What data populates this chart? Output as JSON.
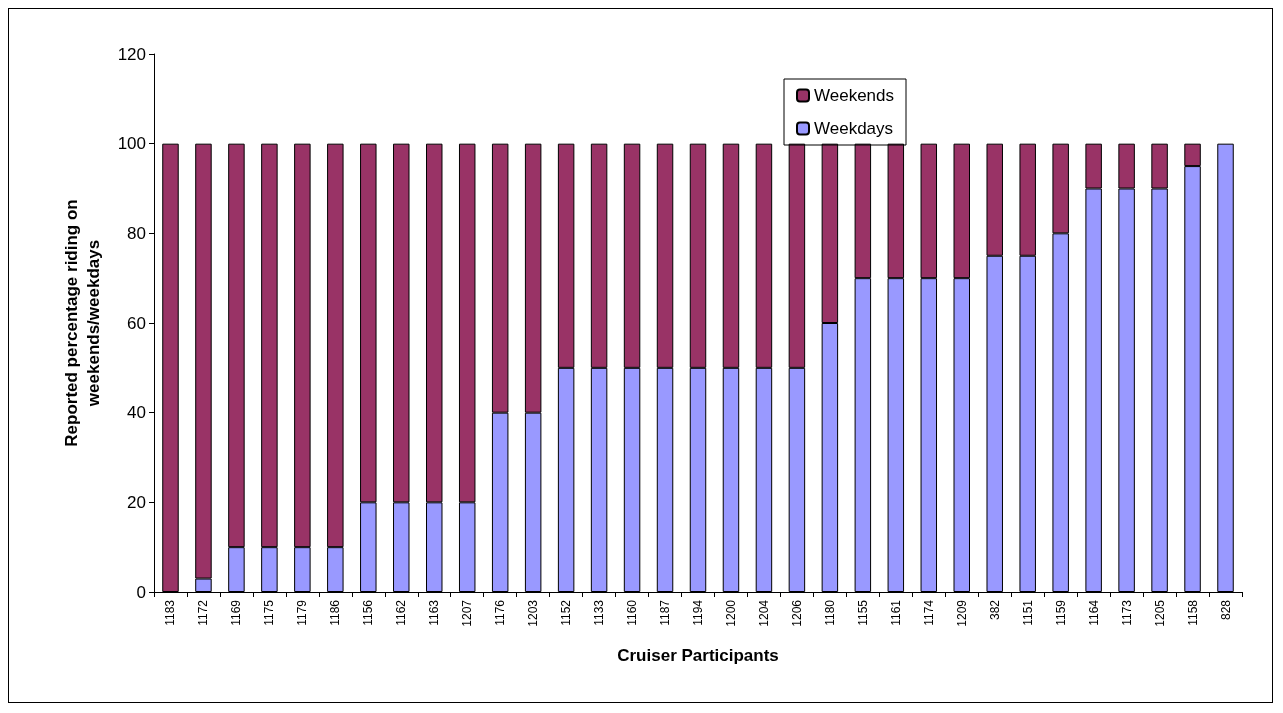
{
  "chart_data": {
    "type": "bar",
    "stacked": true,
    "xlabel": "Cruiser Participants",
    "ylabel": "Reported percentage riding on\nweekends/weekdays",
    "categories": [
      "1183",
      "1172",
      "1169",
      "1175",
      "1179",
      "1186",
      "1156",
      "1162",
      "1163",
      "1207",
      "1176",
      "1203",
      "1152",
      "1133",
      "1160",
      "1187",
      "1194",
      "1200",
      "1204",
      "1206",
      "1180",
      "1155",
      "1161",
      "1174",
      "1209",
      "382",
      "1151",
      "1159",
      "1164",
      "1173",
      "1205",
      "1158",
      "828"
    ],
    "series": [
      {
        "name": "Weekdays",
        "color": "#9999ff",
        "values": [
          0,
          3,
          10,
          10,
          10,
          10,
          20,
          20,
          20,
          20,
          40,
          40,
          50,
          50,
          50,
          50,
          50,
          50,
          50,
          50,
          60,
          70,
          70,
          70,
          70,
          75,
          75,
          80,
          90,
          90,
          90,
          95,
          100
        ]
      },
      {
        "name": "Weekends",
        "color": "#993366",
        "values": [
          100,
          97,
          90,
          90,
          90,
          90,
          80,
          80,
          80,
          80,
          60,
          60,
          50,
          50,
          50,
          50,
          50,
          50,
          50,
          50,
          40,
          30,
          30,
          30,
          30,
          25,
          25,
          20,
          10,
          10,
          10,
          5,
          0
        ]
      }
    ],
    "ylim": [
      0,
      120
    ],
    "yticks": [
      0,
      20,
      40,
      60,
      80,
      100,
      120
    ],
    "grid": false,
    "legend": "top"
  }
}
